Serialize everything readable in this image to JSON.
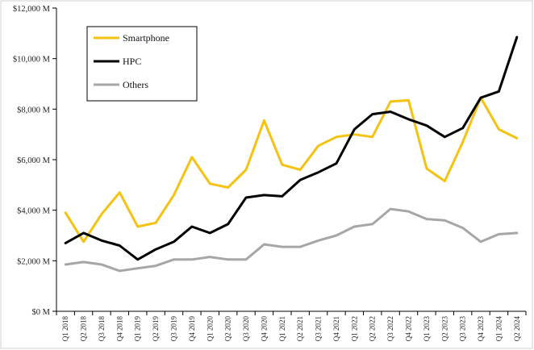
{
  "chart_data": {
    "type": "line",
    "categories": [
      "Q1 2018",
      "Q2 2018",
      "Q3 2018",
      "Q4 2018",
      "Q1 2019",
      "Q2 2019",
      "Q3 2019",
      "Q4 2019",
      "Q1 2020",
      "Q2 2020",
      "Q3 2020",
      "Q4 2020",
      "Q1 2021",
      "Q2 2021",
      "Q3 2021",
      "Q4 2021",
      "Q1 2022",
      "Q2 2022",
      "Q3 2022",
      "Q4 2022",
      "Q1 2023",
      "Q2 2023",
      "Q3 2023",
      "Q4 2023",
      "Q1 2024",
      "Q2 2024"
    ],
    "series": [
      {
        "name": "Smartphone",
        "color": "#f5c211",
        "values": [
          3900,
          2750,
          3850,
          4700,
          3350,
          3500,
          4600,
          6100,
          5050,
          4900,
          5600,
          7550,
          5800,
          5600,
          6550,
          6900,
          7000,
          6900,
          8300,
          8350,
          5650,
          5150,
          6700,
          8450,
          7200,
          6850
        ]
      },
      {
        "name": "HPC",
        "color": "#000000",
        "values": [
          2700,
          3100,
          2800,
          2600,
          2050,
          2450,
          2750,
          3350,
          3100,
          3450,
          4500,
          4600,
          4550,
          5200,
          5500,
          5850,
          7200,
          7800,
          7900,
          7600,
          7350,
          6900,
          7250,
          8450,
          8700,
          10850
        ]
      },
      {
        "name": "Others",
        "color": "#a6a6a6",
        "values": [
          1850,
          1950,
          1850,
          1600,
          1700,
          1800,
          2050,
          2050,
          2150,
          2050,
          2050,
          2650,
          2550,
          2550,
          2800,
          3000,
          3350,
          3450,
          4050,
          3950,
          3650,
          3600,
          3300,
          2750,
          3050,
          3100
        ]
      }
    ],
    "yticks": [
      "$0 M",
      "$2,000 M",
      "$4,000 M",
      "$6,000 M",
      "$8,000 M",
      "$10,000 M",
      "$12,000 M"
    ],
    "ylim": [
      0,
      12000
    ],
    "grid": false,
    "legend_position": "top-left",
    "title": "",
    "xlabel": "",
    "ylabel": ""
  }
}
